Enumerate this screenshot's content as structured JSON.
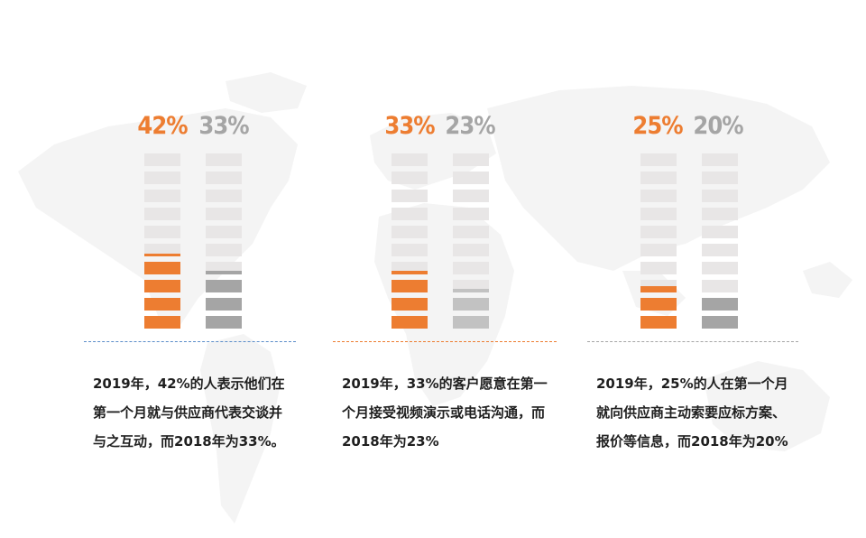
{
  "colors": {
    "accent_2019": "#ED7D31",
    "muted_2018": "#A5A5A5",
    "segment_bg": "#E8E6E6",
    "map": "#F3F3F3"
  },
  "chart_data": [
    {
      "type": "bar",
      "categories": [
        "2019",
        "2018"
      ],
      "values": [
        42,
        33
      ],
      "labels": [
        "42%",
        "33%"
      ],
      "ylim": [
        0,
        100
      ]
    },
    {
      "type": "bar",
      "categories": [
        "2019",
        "2018"
      ],
      "values": [
        33,
        23
      ],
      "labels": [
        "33%",
        "23%"
      ],
      "ylim": [
        0,
        100
      ]
    },
    {
      "type": "bar",
      "categories": [
        "2019",
        "2018"
      ],
      "values": [
        25,
        20
      ],
      "labels": [
        "25%",
        "20%"
      ],
      "ylim": [
        0,
        100
      ]
    }
  ],
  "descriptions": [
    "2019年，42%的人表示他们在第一个月就与供应商代表交谈并与之互动，而2018年为33%。",
    "2019年，33%的客户愿意在第一个月接受视频演示或电话沟通，而2018年为23%",
    "2019年，25%的人在第一个月就向供应商主动索要应标方案、报价等信息，而2018年为20%"
  ]
}
